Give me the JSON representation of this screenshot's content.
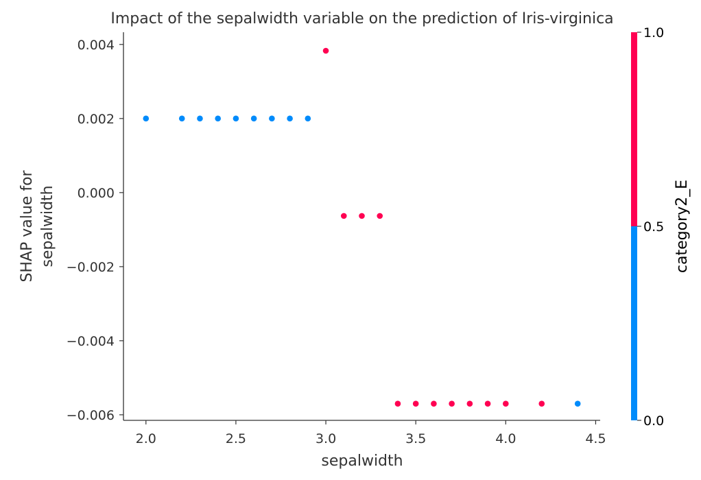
{
  "chart_data": {
    "type": "scatter",
    "title": "Impact of the sepalwidth variable on the prediction of Iris-virginica",
    "xlabel": "sepalwidth",
    "ylabel": "SHAP value for\nsepalwidth",
    "xlim": [
      1.875,
      4.525
    ],
    "ylim": [
      -0.00615,
      0.00433
    ],
    "xticks": [
      "2.0",
      "2.5",
      "3.0",
      "3.5",
      "4.0",
      "4.5"
    ],
    "yticks": [
      "0.004",
      "0.002",
      "0.000",
      "−0.002",
      "−0.004",
      "−0.006"
    ],
    "xtick_values": [
      2.0,
      2.5,
      3.0,
      3.5,
      4.0,
      4.5
    ],
    "ytick_values": [
      0.004,
      0.002,
      0.0,
      -0.002,
      -0.004,
      -0.006
    ],
    "grid": false,
    "colorbar": {
      "label": "category2_E",
      "ticks": [
        "0.0",
        "0.5",
        "1.0"
      ],
      "colors": {
        "0": "#008bfb",
        "1": "#ff0052"
      }
    },
    "points": [
      {
        "x": 2.0,
        "y": 0.002,
        "c": 0
      },
      {
        "x": 2.2,
        "y": 0.002,
        "c": 0
      },
      {
        "x": 2.3,
        "y": 0.002,
        "c": 0
      },
      {
        "x": 2.4,
        "y": 0.002,
        "c": 0
      },
      {
        "x": 2.5,
        "y": 0.002,
        "c": 0
      },
      {
        "x": 2.6,
        "y": 0.002,
        "c": 0
      },
      {
        "x": 2.7,
        "y": 0.002,
        "c": 0
      },
      {
        "x": 2.8,
        "y": 0.002,
        "c": 0
      },
      {
        "x": 2.9,
        "y": 0.002,
        "c": 0
      },
      {
        "x": 3.0,
        "y": 0.00383,
        "c": 1
      },
      {
        "x": 3.1,
        "y": -0.00063,
        "c": 1
      },
      {
        "x": 3.2,
        "y": -0.00063,
        "c": 1
      },
      {
        "x": 3.3,
        "y": -0.00063,
        "c": 1
      },
      {
        "x": 3.4,
        "y": -0.0057,
        "c": 1
      },
      {
        "x": 3.5,
        "y": -0.0057,
        "c": 1
      },
      {
        "x": 3.6,
        "y": -0.0057,
        "c": 1
      },
      {
        "x": 3.7,
        "y": -0.0057,
        "c": 1
      },
      {
        "x": 3.8,
        "y": -0.0057,
        "c": 1
      },
      {
        "x": 3.9,
        "y": -0.0057,
        "c": 1
      },
      {
        "x": 4.0,
        "y": -0.0057,
        "c": 1
      },
      {
        "x": 4.2,
        "y": -0.0057,
        "c": 1
      },
      {
        "x": 4.4,
        "y": -0.0057,
        "c": 0
      }
    ]
  }
}
